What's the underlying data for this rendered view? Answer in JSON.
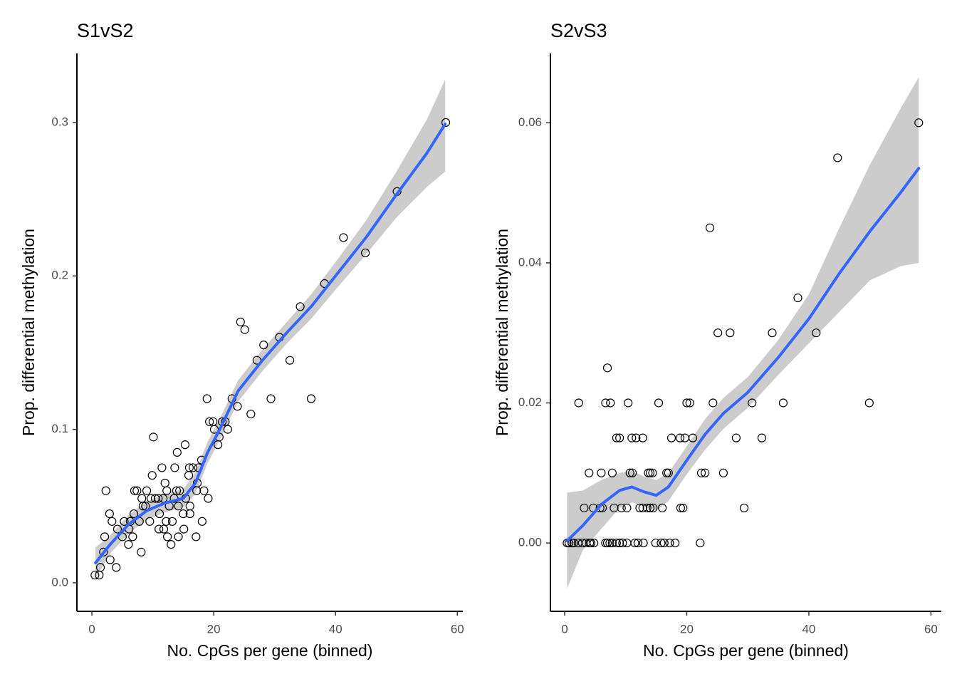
{
  "chart_data": [
    {
      "type": "scatter",
      "title": "S1vS2",
      "x_label": "No. CpGs per gene (binned)",
      "y_label": "Prop. differential methylation",
      "xlim": [
        -2.46,
        60.9
      ],
      "ylim": [
        -0.0186,
        0.345
      ],
      "xticks": [
        0,
        20,
        40,
        60
      ],
      "yticks": [
        {
          "value": 0,
          "label": "0.0"
        },
        0.1,
        0.2,
        0.3
      ],
      "point_color": "#000000",
      "x": [
        0.5,
        1.2,
        1.4,
        1.9,
        2.1,
        2.3,
        2.9,
        3.0,
        3.3,
        4.0,
        4.2,
        5.0,
        5.3,
        6.0,
        6.1,
        6.3,
        6.7,
        6.9,
        7.0,
        7.4,
        7.8,
        8.1,
        8.2,
        8.4,
        8.8,
        9.0,
        9.5,
        9.7,
        9.9,
        10.1,
        10.4,
        10.9,
        11.0,
        11.1,
        11.5,
        11.7,
        11.8,
        12.0,
        12.2,
        12.3,
        12.4,
        12.7,
        13.0,
        13.2,
        13.5,
        13.6,
        13.9,
        14.0,
        14.2,
        14.2,
        14.4,
        15.0,
        15.1,
        15.3,
        15.4,
        15.9,
        16.0,
        16.1,
        16.1,
        16.6,
        17.1,
        17.2,
        17.3,
        17.5,
        18.0,
        18.1,
        18.4,
        18.9,
        19.1,
        19.3,
        19.9,
        20.1,
        20.7,
        20.9,
        21.4,
        21.9,
        22.3,
        23.0,
        23.9,
        24.4,
        25.1,
        26.1,
        27.1,
        28.2,
        29.4,
        30.8,
        32.5,
        34.2,
        36.0,
        38.2,
        41.3,
        44.9,
        50.1,
        58.1
      ],
      "values": [
        0.005,
        0.005,
        0.01,
        0.02,
        0.03,
        0.06,
        0.045,
        0.015,
        0.04,
        0.01,
        0.035,
        0.03,
        0.04,
        0.025,
        0.035,
        0.04,
        0.03,
        0.045,
        0.06,
        0.06,
        0.04,
        0.02,
        0.055,
        0.05,
        0.05,
        0.06,
        0.04,
        0.055,
        0.07,
        0.095,
        0.055,
        0.055,
        0.035,
        0.045,
        0.075,
        0.055,
        0.035,
        0.065,
        0.04,
        0.06,
        0.03,
        0.05,
        0.025,
        0.04,
        0.055,
        0.075,
        0.06,
        0.085,
        0.05,
        0.03,
        0.06,
        0.045,
        0.035,
        0.09,
        0.055,
        0.07,
        0.075,
        0.05,
        0.045,
        0.075,
        0.03,
        0.06,
        0.065,
        0.075,
        0.08,
        0.04,
        0.06,
        0.12,
        0.055,
        0.105,
        0.105,
        0.1,
        0.09,
        0.095,
        0.105,
        0.105,
        0.1,
        0.12,
        0.115,
        0.17,
        0.165,
        0.11,
        0.145,
        0.155,
        0.12,
        0.16,
        0.145,
        0.18,
        0.12,
        0.195,
        0.225,
        0.215,
        0.255,
        0.3
      ],
      "smooth": {
        "color": "#3366ff",
        "band_color": "#cccccc",
        "x": [
          0.6,
          3,
          6,
          9,
          12,
          15,
          17,
          19,
          21,
          24,
          28,
          32,
          36,
          40,
          45,
          50,
          55,
          58
        ],
        "values": [
          0.013,
          0.025,
          0.038,
          0.047,
          0.052,
          0.055,
          0.065,
          0.085,
          0.1,
          0.125,
          0.145,
          0.163,
          0.18,
          0.2,
          0.225,
          0.253,
          0.28,
          0.299
        ],
        "lower": [
          0.003,
          0.019,
          0.032,
          0.041,
          0.046,
          0.049,
          0.058,
          0.078,
          0.093,
          0.118,
          0.138,
          0.156,
          0.172,
          0.191,
          0.214,
          0.238,
          0.258,
          0.268
        ],
        "upper": [
          0.023,
          0.031,
          0.044,
          0.053,
          0.058,
          0.061,
          0.072,
          0.092,
          0.107,
          0.132,
          0.152,
          0.17,
          0.188,
          0.209,
          0.236,
          0.268,
          0.302,
          0.328
        ]
      }
    },
    {
      "type": "scatter",
      "title": "S2vS3",
      "x_label": "No. CpGs per gene (binned)",
      "y_label": "Prop. differential methylation",
      "xlim": [
        -2.33,
        61.7
      ],
      "ylim": [
        -0.00976,
        0.0699
      ],
      "xticks": [
        0,
        20,
        40,
        60
      ],
      "yticks": [
        {
          "value": 0,
          "label": "0.00"
        },
        0.02,
        0.04,
        0.06
      ],
      "point_color": "#000000",
      "x": [
        0.4,
        0.7,
        1.2,
        1.5,
        2.2,
        2.9,
        3.5,
        4.1,
        4.3,
        4.8,
        6.7,
        7.0,
        7.4,
        7.8,
        8.5,
        9.0,
        9.5,
        10.2,
        11.5,
        12.0,
        12.9,
        14.9,
        15.8,
        16.3,
        17.2,
        18.1,
        22.2,
        3.2,
        4.7,
        5.8,
        6.2,
        8.1,
        9.3,
        10.2,
        12.3,
        12.8,
        13.5,
        14.0,
        14.5,
        16.0,
        19.0,
        19.4,
        29.4,
        4.0,
        6.0,
        7.8,
        10.7,
        11.1,
        13.7,
        14.0,
        14.4,
        16.7,
        17.0,
        22.4,
        23.0,
        26.0,
        8.5,
        9.0,
        11.0,
        11.7,
        12.8,
        17.5,
        18.9,
        19.7,
        21.0,
        28.1,
        32.3,
        2.3,
        6.7,
        7.5,
        10.4,
        15.4,
        20.0,
        20.5,
        24.3,
        30.7,
        35.8,
        49.9,
        7.0,
        23.8,
        25.1,
        27.1,
        34.0,
        38.2,
        41.2,
        44.7,
        58.0
      ],
      "values": [
        0,
        0,
        0,
        0,
        0,
        0,
        0,
        0,
        0,
        0,
        0,
        0,
        0,
        0,
        0,
        0,
        0,
        0,
        0,
        0,
        0,
        0,
        0,
        0,
        0,
        0,
        0,
        0.005,
        0.005,
        0.005,
        0.005,
        0.005,
        0.005,
        0.005,
        0.005,
        0.005,
        0.005,
        0.005,
        0.005,
        0.005,
        0.005,
        0.005,
        0.005,
        0.01,
        0.01,
        0.01,
        0.01,
        0.01,
        0.01,
        0.01,
        0.01,
        0.01,
        0.01,
        0.01,
        0.01,
        0.01,
        0.015,
        0.015,
        0.015,
        0.015,
        0.015,
        0.015,
        0.015,
        0.015,
        0.015,
        0.015,
        0.015,
        0.02,
        0.02,
        0.02,
        0.02,
        0.02,
        0.02,
        0.02,
        0.02,
        0.02,
        0.02,
        0.02,
        0.025,
        0.045,
        0.03,
        0.03,
        0.03,
        0.035,
        0.03,
        0.055,
        0.06
      ],
      "smooth": {
        "color": "#3366ff",
        "band_color": "#cccccc",
        "x": [
          0.4,
          3,
          6,
          9,
          11,
          13,
          15,
          17,
          20,
          23,
          26,
          30,
          35,
          40,
          45,
          50,
          55,
          58
        ],
        "values": [
          0.0003,
          0.0025,
          0.0055,
          0.0075,
          0.008,
          0.0073,
          0.0068,
          0.008,
          0.0118,
          0.0155,
          0.0185,
          0.0215,
          0.0265,
          0.032,
          0.0385,
          0.0445,
          0.05,
          0.0535
        ],
        "lower": [
          -0.0065,
          -0.001,
          0.002,
          0.005,
          0.0058,
          0.0052,
          0.0046,
          0.006,
          0.0098,
          0.0133,
          0.0163,
          0.0193,
          0.024,
          0.0285,
          0.033,
          0.0375,
          0.0395,
          0.04
        ],
        "upper": [
          0.0072,
          0.0075,
          0.009,
          0.01,
          0.0103,
          0.0095,
          0.009,
          0.01,
          0.0138,
          0.0177,
          0.0207,
          0.0237,
          0.029,
          0.0355,
          0.045,
          0.054,
          0.062,
          0.0665
        ]
      }
    }
  ]
}
